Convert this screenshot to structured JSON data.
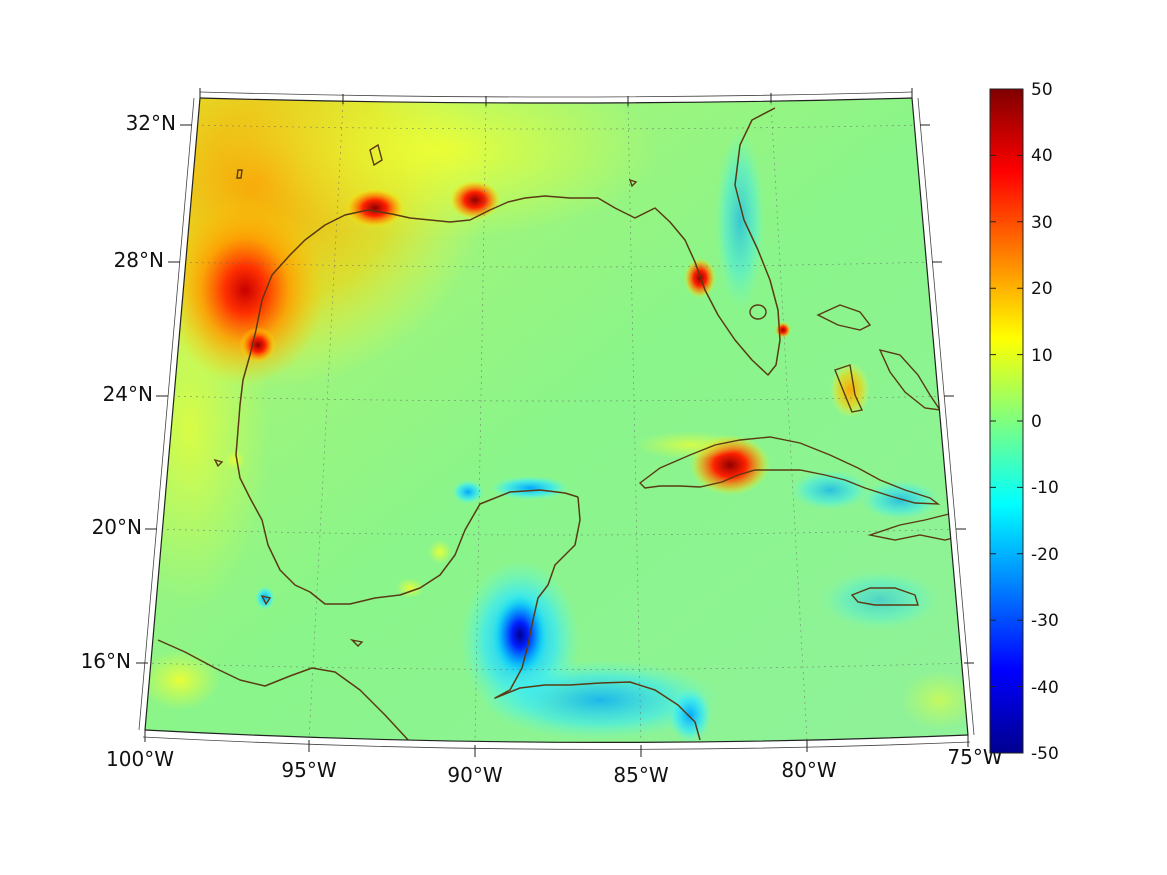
{
  "map": {
    "lon_labels": [
      "100°W",
      "95°W",
      "90°W",
      "85°W",
      "80°W",
      "75°W"
    ],
    "lat_labels": [
      "32°N",
      "28°N",
      "24°N",
      "20°N",
      "16°N"
    ],
    "projection": "conic",
    "extent": {
      "lon": [
        -100,
        -75
      ],
      "lat": [
        14,
        33
      ]
    },
    "coastline_color": "#5a3a12",
    "graticule": "dotted"
  },
  "colorbar": {
    "colormap": "jet",
    "range": [
      -50,
      50
    ],
    "tick_labels": [
      "50",
      "40",
      "30",
      "20",
      "10",
      "0",
      "-10",
      "-20",
      "-30",
      "-40",
      "-50"
    ]
  }
}
